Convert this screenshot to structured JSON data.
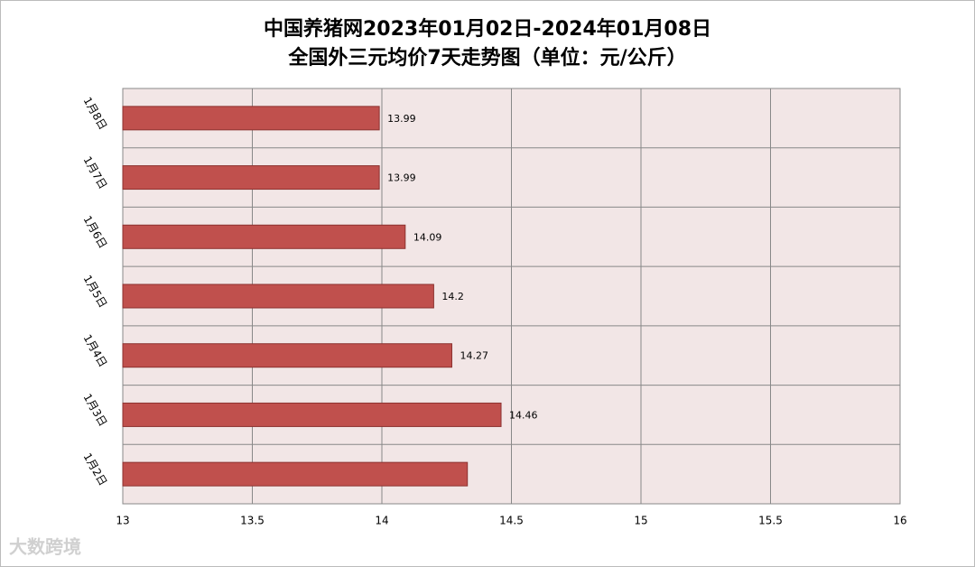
{
  "chart_data": {
    "type": "bar",
    "orientation": "horizontal",
    "title": "中国养猪网2023年01月02日-2024年01月08日",
    "subtitle": "全国外三元均价7天走势图（单位：元/公斤）",
    "categories": [
      "1月2日",
      "1月3日",
      "1月4日",
      "1月5日",
      "1月6日",
      "1月7日",
      "1月8日"
    ],
    "values": [
      14.33,
      14.46,
      14.27,
      14.2,
      14.09,
      13.99,
      13.99
    ],
    "value_labels": [
      null,
      "14.46",
      "14.27",
      "14.2",
      "14.09",
      "13.99",
      "13.99"
    ],
    "color": "#c0504d",
    "xlim": [
      13,
      16
    ],
    "xticks": [
      13,
      13.5,
      14,
      14.5,
      15,
      15.5,
      16
    ],
    "grid": true,
    "watermark": "大数跨境"
  }
}
